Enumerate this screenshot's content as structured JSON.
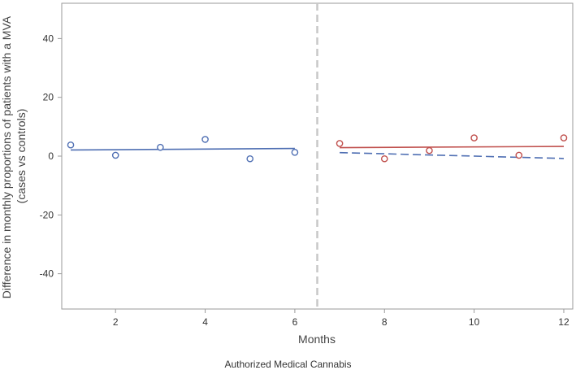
{
  "chart_data": {
    "type": "scatter",
    "xlabel": "Months",
    "ylabel_lines": [
      "Difference in monthly proportions of patients with a MVA",
      "(cases vs controls)"
    ],
    "caption": "Authorized Medical Cannabis",
    "xlim": [
      0.8,
      12.2
    ],
    "ylim": [
      -52,
      52
    ],
    "xticks": [
      2,
      4,
      6,
      8,
      10,
      12
    ],
    "yticks": [
      -40,
      -20,
      0,
      20,
      40
    ],
    "intervention_x": 6.5,
    "grid": false,
    "series": [
      {
        "color": "#4f6fb3",
        "marker": "open-circle",
        "x": [
          1,
          2,
          3,
          4,
          5,
          6
        ],
        "y": [
          3.8,
          0.3,
          3.0,
          5.7,
          -0.9,
          1.3
        ]
      },
      {
        "color": "#c0504d",
        "marker": "open-circle",
        "x": [
          7,
          8,
          9,
          10,
          11,
          12
        ],
        "y": [
          4.3,
          -0.9,
          1.9,
          6.2,
          0.3,
          6.2
        ]
      }
    ],
    "fit_lines": [
      {
        "color": "#4f6fb3",
        "style": "solid",
        "x": [
          1,
          6
        ],
        "y": [
          2.1,
          2.6
        ]
      },
      {
        "color": "#c0504d",
        "style": "solid",
        "x": [
          7,
          12
        ],
        "y": [
          2.9,
          3.3
        ]
      },
      {
        "color": "#4f6fb3",
        "style": "dashed",
        "x": [
          7,
          12
        ],
        "y": [
          1.2,
          -0.8
        ]
      }
    ]
  }
}
